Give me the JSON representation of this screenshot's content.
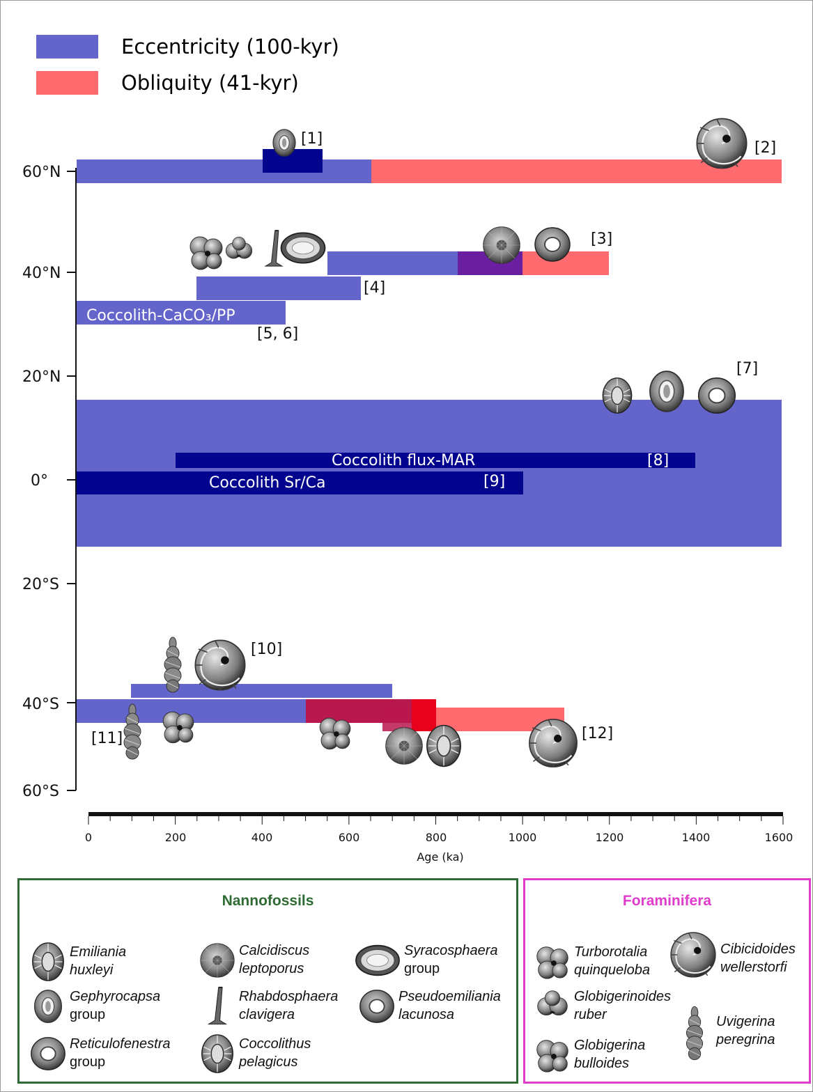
{
  "legend": {
    "eccentricity": "Eccentricity (100-kyr)",
    "obliquity": "Obliquity (41-kyr)"
  },
  "colors": {
    "eccentricity": "#6365cb",
    "obliquity": "#fd6b6f",
    "dark_navy": "#03058e",
    "purple_overlap": "#6a1ea0",
    "crimson_overlap": "#b8184e",
    "red_overlap": "#e8001c",
    "nanno_border": "#2f6b34",
    "foram_border": "#e03ccc"
  },
  "y_axis_labels": [
    "60°N",
    "40°N",
    "20°N",
    "0°",
    "20°S",
    "40°S",
    "60°S"
  ],
  "x_axis": {
    "label": "Age (ka)",
    "ticks": [
      "0",
      "200",
      "400",
      "600",
      "800",
      "1000",
      "1200",
      "1400",
      "1600"
    ]
  },
  "bar_labels": {
    "coccolith_caco3": "Coccolith-CaCO₃/PP",
    "coccolith_flux": "Coccolith flux-MAR",
    "coccolith_srca": "Coccolith Sr/Ca"
  },
  "refs": [
    "[1]",
    "[2]",
    "[3]",
    "[4]",
    "[5, 6]",
    "[7]",
    "[8]",
    "[9]",
    "[10]",
    "[11]",
    "[12]"
  ],
  "records": [
    {
      "ref": "[1]",
      "type": "eccentricity",
      "from_ka": 0,
      "to_ka": 650,
      "lat": 61
    },
    {
      "ref": "[1]",
      "type": "eccentricity-dark",
      "from_ka": 400,
      "to_ka": 540,
      "lat": 62
    },
    {
      "ref": "[2]",
      "type": "obliquity",
      "from_ka": 650,
      "to_ka": 1600,
      "lat": 61
    },
    {
      "ref": "[3]",
      "type": "eccentricity",
      "from_ka": 550,
      "to_ka": 850,
      "lat": 42
    },
    {
      "ref": "[3]",
      "type": "overlap",
      "from_ka": 850,
      "to_ka": 1000,
      "lat": 42
    },
    {
      "ref": "[3]",
      "type": "obliquity",
      "from_ka": 1000,
      "to_ka": 1200,
      "lat": 42
    },
    {
      "ref": "[4]",
      "type": "eccentricity",
      "from_ka": 250,
      "to_ka": 630,
      "lat": 37
    },
    {
      "ref": "[5, 6]",
      "type": "eccentricity",
      "from_ka": 0,
      "to_ka": 450,
      "lat": 32
    },
    {
      "ref": "[7]",
      "type": "eccentricity",
      "from_ka": 0,
      "to_ka": 1600,
      "lat": 0
    },
    {
      "ref": "[8]",
      "type": "eccentricity-dark",
      "from_ka": 200,
      "to_ka": 1400,
      "lat": 4
    },
    {
      "ref": "[9]",
      "type": "eccentricity-dark",
      "from_ka": 0,
      "to_ka": 1000,
      "lat": 0
    },
    {
      "ref": "[10]",
      "type": "eccentricity",
      "from_ka": 100,
      "to_ka": 700,
      "lat": -39
    },
    {
      "ref": "[11]",
      "type": "eccentricity",
      "from_ka": 0,
      "to_ka": 500,
      "lat": -42
    },
    {
      "ref": "[12]",
      "type": "obliquity",
      "from_ka": 680,
      "to_ka": 1100,
      "lat": -43
    }
  ],
  "nannofossils": {
    "title": "Nannofossils",
    "items": [
      {
        "name1": "Emiliania",
        "name2": "huxleyi",
        "plain": "",
        "icon": "emiliania-icon"
      },
      {
        "name1": "Calcidiscus",
        "name2": "leptoporus",
        "plain": "",
        "icon": "calcidiscus-icon"
      },
      {
        "name1": "Syracosphaera",
        "name2": "",
        "plain": "group",
        "icon": "syracosphaera-icon"
      },
      {
        "name1": "Gephyrocapsa",
        "name2": "",
        "plain": "group",
        "icon": "gephyrocapsa-icon"
      },
      {
        "name1": "Rhabdosphaera",
        "name2": "clavigera",
        "plain": "",
        "icon": "rhabdosphaera-icon"
      },
      {
        "name1": "Pseudoemiliania",
        "name2": "lacunosa",
        "plain": "",
        "icon": "pseudoemiliania-icon"
      },
      {
        "name1": "Reticulofenestra",
        "name2": "",
        "plain": "group",
        "icon": "reticulofenestra-icon"
      },
      {
        "name1": "Coccolithus",
        "name2": "pelagicus",
        "plain": "",
        "icon": "coccolithus-icon"
      }
    ]
  },
  "foraminifera": {
    "title": "Foraminifera",
    "items": [
      {
        "name1": "Turborotalia",
        "name2": "quinqueloba",
        "plain": "",
        "icon": "turborotalia-icon"
      },
      {
        "name1": "Cibicidoides",
        "name2": "wellerstorfi",
        "plain": "",
        "icon": "cibicidoides-icon"
      },
      {
        "name1": "Globigerinoides",
        "name2": "ruber",
        "plain": "",
        "icon": "globigerinoides-icon"
      },
      {
        "name1": "Uvigerina",
        "name2": "peregrina",
        "plain": "",
        "icon": "uvigerina-icon"
      },
      {
        "name1": "Globigerina",
        "name2": "bulloides",
        "plain": "",
        "icon": "globigerina-icon"
      }
    ]
  }
}
